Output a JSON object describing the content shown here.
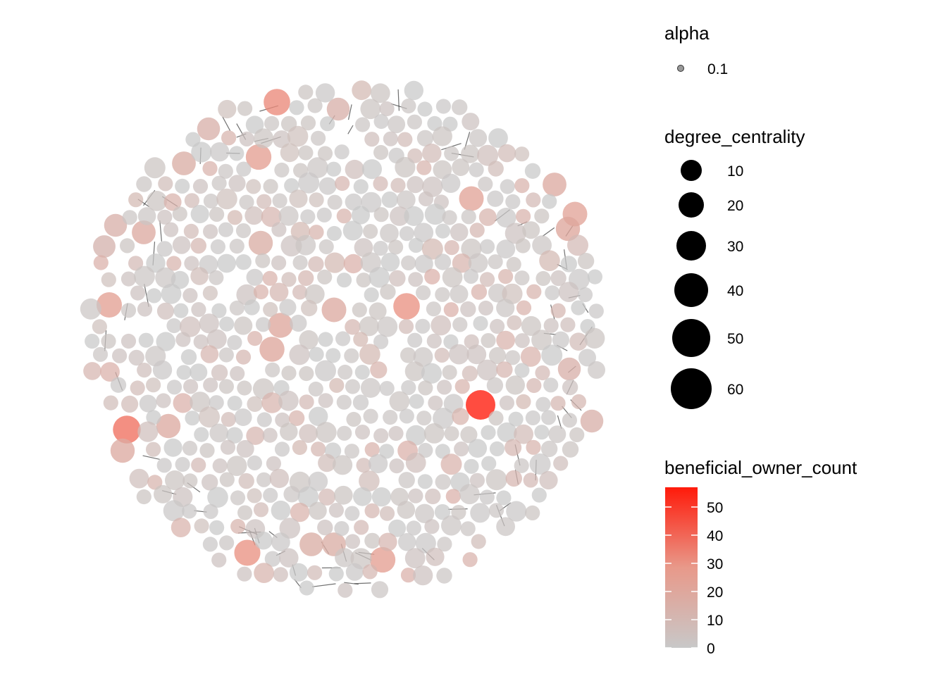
{
  "chart_data": {
    "type": "scatter",
    "subtype": "network-graph",
    "title": "",
    "xlabel": "",
    "ylabel": "",
    "grid": false,
    "legend_position": "right",
    "colors": {
      "low": "#c8c8c8",
      "high": "#ff1a0a",
      "edge": "#000000",
      "background": "#ffffff"
    },
    "legends": {
      "alpha": {
        "title": "alpha",
        "entries": [
          {
            "label": "0.1"
          }
        ]
      },
      "size": {
        "title": "degree_centrality",
        "entries": [
          {
            "label": "10",
            "value": 10
          },
          {
            "label": "20",
            "value": 20
          },
          {
            "label": "30",
            "value": 30
          },
          {
            "label": "40",
            "value": 40
          },
          {
            "label": "50",
            "value": 50
          },
          {
            "label": "60",
            "value": 60
          }
        ]
      },
      "color": {
        "title": "beneficial_owner_count",
        "range": [
          0,
          57
        ],
        "ticks": [
          {
            "label": "0",
            "value": 0
          },
          {
            "label": "10",
            "value": 10
          },
          {
            "label": "20",
            "value": 20
          },
          {
            "label": "30",
            "value": 30
          },
          {
            "label": "40",
            "value": 40
          },
          {
            "label": "50",
            "value": 50
          }
        ]
      }
    }
  }
}
